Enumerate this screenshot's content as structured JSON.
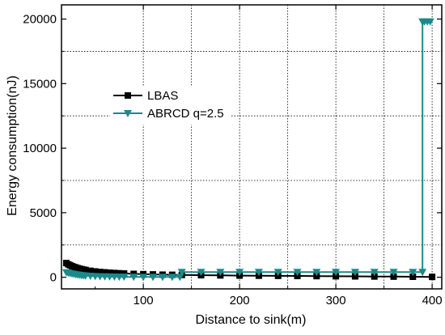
{
  "chart_data": {
    "type": "line",
    "title": "",
    "xlabel": "Distance to sink(m)",
    "ylabel": "Energy consumption(nJ)",
    "xlim": [
      15,
      410
    ],
    "ylim": [
      -900,
      21100
    ],
    "x_ticks": [
      100,
      200,
      300,
      400
    ],
    "y_ticks": [
      0,
      5000,
      10000,
      15000,
      20000
    ],
    "x_grid": [
      100,
      150,
      200,
      250,
      300,
      350,
      400
    ],
    "y_grid": [
      2500,
      7500,
      12500,
      17500
    ],
    "grid": true,
    "legend_position": "upper-left",
    "colors": {
      "LBAS": "#000000",
      "ABRCD": "#1a8a8a"
    },
    "series": [
      {
        "name": "LBAS",
        "marker": "square",
        "x": [
          20,
          22,
          24,
          26,
          28,
          30,
          32,
          34,
          36,
          38,
          40,
          45,
          50,
          55,
          60,
          65,
          70,
          75,
          80,
          90,
          100,
          110,
          120,
          130,
          140,
          160,
          180,
          200,
          220,
          240,
          260,
          280,
          300,
          320,
          340,
          360,
          380,
          400
        ],
        "y": [
          1100,
          1000,
          930,
          860,
          800,
          750,
          700,
          660,
          620,
          590,
          560,
          500,
          450,
          410,
          380,
          350,
          330,
          310,
          290,
          260,
          240,
          220,
          200,
          190,
          180,
          160,
          145,
          130,
          120,
          110,
          100,
          90,
          80,
          70,
          60,
          50,
          40,
          30
        ]
      },
      {
        "name": "ABRCD q=2.5",
        "marker": "triangle-down",
        "x": [
          20,
          22,
          24,
          26,
          28,
          30,
          32,
          34,
          36,
          38,
          40,
          45,
          50,
          55,
          60,
          65,
          70,
          75,
          80,
          90,
          100,
          110,
          120,
          130,
          138,
          140,
          160,
          180,
          200,
          220,
          240,
          260,
          280,
          300,
          320,
          340,
          360,
          380,
          390,
          390,
          392,
          395,
          398
        ],
        "y": [
          380,
          340,
          300,
          270,
          240,
          210,
          190,
          170,
          150,
          135,
          120,
          100,
          80,
          65,
          55,
          45,
          40,
          35,
          30,
          25,
          20,
          20,
          20,
          20,
          20,
          400,
          400,
          400,
          400,
          400,
          400,
          400,
          400,
          400,
          400,
          400,
          400,
          400,
          400,
          19800,
          19800,
          19800,
          19800
        ]
      }
    ]
  }
}
